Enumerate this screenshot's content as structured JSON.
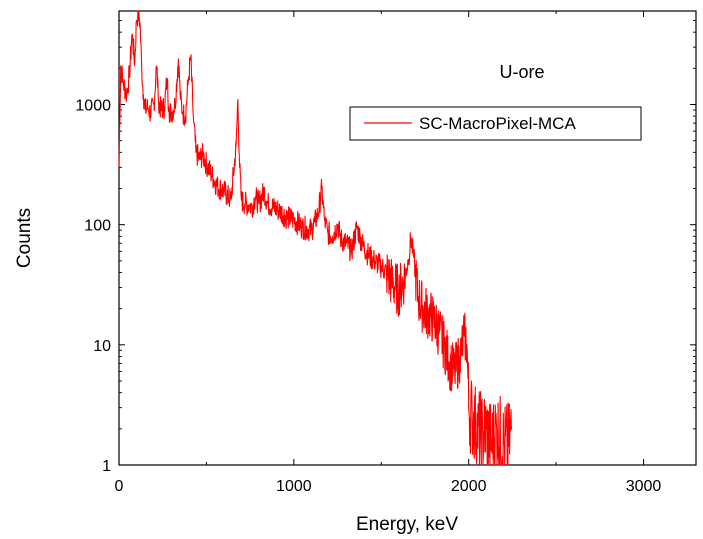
{
  "colors": {
    "series": "#ff0000",
    "axis": "#000000",
    "background": "#ffffff"
  },
  "chart_data": {
    "type": "line",
    "title": "",
    "xlabel": "Energy, keV",
    "ylabel": "Counts",
    "xlim": [
      0,
      3300
    ],
    "ylim": [
      1,
      6000
    ],
    "yscale": "log",
    "grid": false,
    "legend_position": "top-right",
    "x_ticks": [
      0,
      1000,
      2000,
      3000
    ],
    "x_tick_labels": [
      "0",
      "1000",
      "2000",
      "3000"
    ],
    "y_ticks": [
      1,
      10,
      100,
      1000
    ],
    "y_tick_labels": [
      "1",
      "10",
      "100",
      "1000"
    ],
    "annotations": [
      {
        "text": "U-ore"
      }
    ],
    "series": [
      {
        "name": "SC-MacroPixel-MCA",
        "color": "#ff0000",
        "x": [
          0,
          10,
          25,
          45,
          60,
          75,
          90,
          100,
          110,
          120,
          130,
          140,
          150,
          165,
          180,
          200,
          215,
          225,
          240,
          260,
          275,
          285,
          300,
          320,
          340,
          352,
          365,
          380,
          395,
          410,
          425,
          440,
          460,
          480,
          500,
          530,
          560,
          600,
          640,
          670,
          680,
          690,
          700,
          720,
          745,
          760,
          780,
          800,
          830,
          850,
          880,
          920,
          960,
          1000,
          1050,
          1100,
          1120,
          1140,
          1160,
          1175,
          1195,
          1220,
          1250,
          1270,
          1300,
          1330,
          1360,
          1380,
          1400,
          1430,
          1460,
          1500,
          1530,
          1560,
          1600,
          1630,
          1655,
          1670,
          1685,
          1710,
          1740,
          1770,
          1800,
          1830,
          1860,
          1890,
          1920,
          1950,
          1975,
          1990,
          2000,
          2020,
          2050,
          2080,
          2100,
          2130,
          2160,
          2200,
          2230,
          2245
        ],
        "y": [
          300,
          2100,
          1500,
          1200,
          1800,
          4000,
          2200,
          5000,
          5800,
          4800,
          2000,
          1200,
          900,
          950,
          850,
          1000,
          2200,
          1100,
          900,
          950,
          1700,
          900,
          850,
          1000,
          2400,
          1100,
          850,
          800,
          1500,
          2500,
          800,
          400,
          350,
          380,
          320,
          260,
          210,
          190,
          160,
          450,
          1100,
          300,
          160,
          150,
          145,
          140,
          170,
          150,
          190,
          150,
          140,
          130,
          115,
          110,
          95,
          90,
          105,
          125,
          200,
          110,
          85,
          80,
          100,
          75,
          70,
          60,
          95,
          78,
          65,
          55,
          50,
          45,
          40,
          33,
          28,
          35,
          50,
          78,
          55,
          25,
          20,
          18,
          16,
          13,
          10,
          7,
          6,
          8,
          12,
          10,
          3,
          2.5,
          2,
          1.8,
          2,
          1.5,
          2,
          1.5,
          1.5,
          2
        ]
      }
    ]
  }
}
